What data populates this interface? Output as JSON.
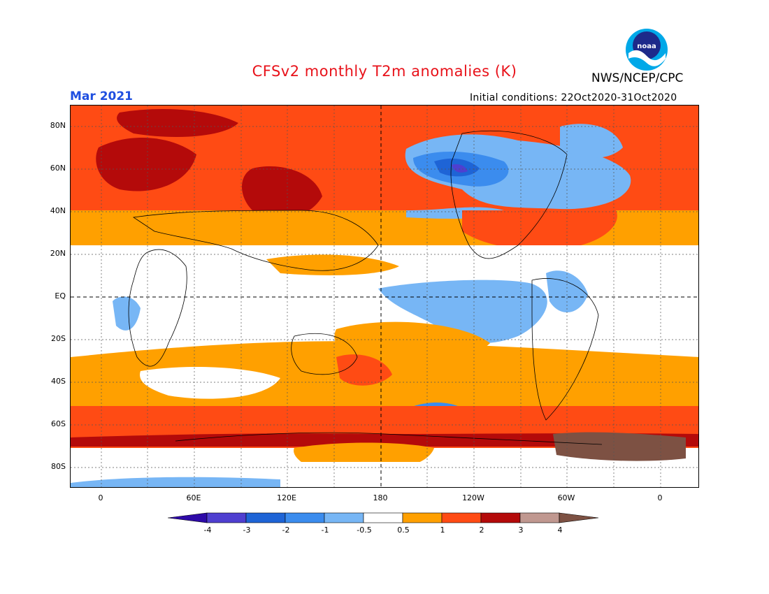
{
  "header": {
    "title": "CFSv2 monthly T2m anomalies (K)",
    "title_color": "#e8121a",
    "agency": "NWS/NCEP/CPC",
    "month": "Mar 2021",
    "month_color": "#1f4fe0",
    "init_conditions": "Initial conditions: 22Oct2020-31Oct2020",
    "logo_icon": "noaa-logo-icon"
  },
  "map": {
    "type": "global-anomaly-map",
    "lat_labels": [
      "80N",
      "60N",
      "40N",
      "20N",
      "EQ",
      "20S",
      "40S",
      "60S",
      "80S"
    ],
    "lon_labels": [
      "0",
      "60E",
      "120E",
      "180",
      "120W",
      "60W",
      "0"
    ],
    "grid": "dotted",
    "reference_lines": [
      "EQ",
      "180"
    ]
  },
  "colorbar": {
    "labels": [
      "-4",
      "-3",
      "-2",
      "-1",
      "-0.5",
      "0.5",
      "1",
      "2",
      "3",
      "4"
    ],
    "colors": [
      "#2e0aa8",
      "#4f3fd0",
      "#1e64d6",
      "#3b8cee",
      "#77b6f5",
      "#ffffff",
      "#ffa000",
      "#ff4b14",
      "#b40a0a",
      "#c09890",
      "#7d5143"
    ]
  },
  "colors": {
    "cold_1": "#77b6f5",
    "cold_2": "#3b8cee",
    "cold_3": "#1e64d6",
    "cold_4": "#4f3fd0",
    "warm_1": "#ffa000",
    "warm_2": "#ff4b14",
    "warm_3": "#b40a0a",
    "warm_4": "#c09890",
    "warm_5": "#7d5143"
  }
}
